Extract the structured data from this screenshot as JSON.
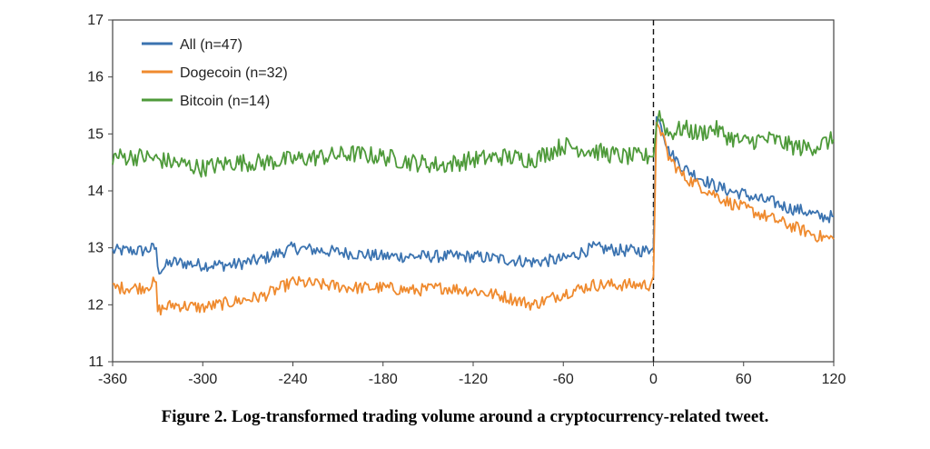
{
  "caption": "Figure 2. Log-transformed trading volume around a cryptocurrency-related tweet.",
  "chart_data": {
    "type": "line",
    "title": "",
    "xlabel": "",
    "ylabel": "",
    "xlim": [
      -360,
      120
    ],
    "ylim": [
      11,
      17
    ],
    "x_ticks": [
      -360,
      -300,
      -240,
      -180,
      -120,
      -60,
      0,
      60,
      120
    ],
    "y_ticks": [
      11,
      12,
      13,
      14,
      15,
      16,
      17
    ],
    "event_line_x": 0,
    "grid": false,
    "legend_position": "top-left",
    "series": [
      {
        "name": "All (n=47)",
        "color": "#3b73b0",
        "points": [
          [
            -360,
            12.95
          ],
          [
            -340,
            12.95
          ],
          [
            -331,
            13.0
          ],
          [
            -330,
            12.6
          ],
          [
            -320,
            12.75
          ],
          [
            -300,
            12.7
          ],
          [
            -280,
            12.7
          ],
          [
            -260,
            12.8
          ],
          [
            -240,
            13.0
          ],
          [
            -220,
            12.95
          ],
          [
            -200,
            12.9
          ],
          [
            -180,
            12.85
          ],
          [
            -160,
            12.85
          ],
          [
            -140,
            12.85
          ],
          [
            -120,
            12.85
          ],
          [
            -100,
            12.8
          ],
          [
            -80,
            12.75
          ],
          [
            -60,
            12.8
          ],
          [
            -40,
            13.0
          ],
          [
            -20,
            12.95
          ],
          [
            -2,
            12.95
          ],
          [
            0,
            13.0
          ],
          [
            2,
            15.3
          ],
          [
            5,
            15.2
          ],
          [
            10,
            14.7
          ],
          [
            20,
            14.4
          ],
          [
            30,
            14.25
          ],
          [
            40,
            14.1
          ],
          [
            50,
            14.0
          ],
          [
            60,
            13.95
          ],
          [
            70,
            13.85
          ],
          [
            80,
            13.8
          ],
          [
            90,
            13.7
          ],
          [
            100,
            13.65
          ],
          [
            110,
            13.55
          ],
          [
            120,
            13.55
          ]
        ]
      },
      {
        "name": "Dogecoin (n=32)",
        "color": "#ef8a2e",
        "points": [
          [
            -360,
            12.3
          ],
          [
            -340,
            12.3
          ],
          [
            -331,
            12.4
          ],
          [
            -330,
            11.9
          ],
          [
            -320,
            12.0
          ],
          [
            -300,
            11.95
          ],
          [
            -280,
            12.05
          ],
          [
            -260,
            12.15
          ],
          [
            -240,
            12.4
          ],
          [
            -220,
            12.35
          ],
          [
            -200,
            12.3
          ],
          [
            -180,
            12.3
          ],
          [
            -160,
            12.25
          ],
          [
            -140,
            12.3
          ],
          [
            -120,
            12.25
          ],
          [
            -100,
            12.15
          ],
          [
            -80,
            12.0
          ],
          [
            -60,
            12.2
          ],
          [
            -40,
            12.35
          ],
          [
            -20,
            12.35
          ],
          [
            -2,
            12.35
          ],
          [
            0,
            12.5
          ],
          [
            2,
            15.2
          ],
          [
            5,
            15.05
          ],
          [
            10,
            14.6
          ],
          [
            20,
            14.25
          ],
          [
            30,
            14.1
          ],
          [
            40,
            13.95
          ],
          [
            50,
            13.8
          ],
          [
            60,
            13.7
          ],
          [
            70,
            13.6
          ],
          [
            80,
            13.5
          ],
          [
            90,
            13.4
          ],
          [
            100,
            13.3
          ],
          [
            110,
            13.2
          ],
          [
            120,
            13.15
          ]
        ]
      },
      {
        "name": "Bitcoin (n=14)",
        "color": "#4e9a3a",
        "points": [
          [
            -360,
            14.6
          ],
          [
            -340,
            14.6
          ],
          [
            -320,
            14.5
          ],
          [
            -300,
            14.4
          ],
          [
            -280,
            14.5
          ],
          [
            -260,
            14.5
          ],
          [
            -240,
            14.55
          ],
          [
            -220,
            14.6
          ],
          [
            -200,
            14.65
          ],
          [
            -180,
            14.6
          ],
          [
            -160,
            14.5
          ],
          [
            -140,
            14.45
          ],
          [
            -120,
            14.55
          ],
          [
            -100,
            14.6
          ],
          [
            -80,
            14.55
          ],
          [
            -60,
            14.8
          ],
          [
            -40,
            14.7
          ],
          [
            -20,
            14.6
          ],
          [
            -2,
            14.6
          ],
          [
            0,
            14.6
          ],
          [
            3,
            15.4
          ],
          [
            10,
            15.0
          ],
          [
            20,
            15.1
          ],
          [
            30,
            15.0
          ],
          [
            40,
            15.1
          ],
          [
            50,
            14.95
          ],
          [
            60,
            14.85
          ],
          [
            70,
            14.9
          ],
          [
            80,
            14.9
          ],
          [
            90,
            14.8
          ],
          [
            100,
            14.75
          ],
          [
            110,
            14.8
          ],
          [
            120,
            14.9
          ]
        ]
      }
    ]
  }
}
